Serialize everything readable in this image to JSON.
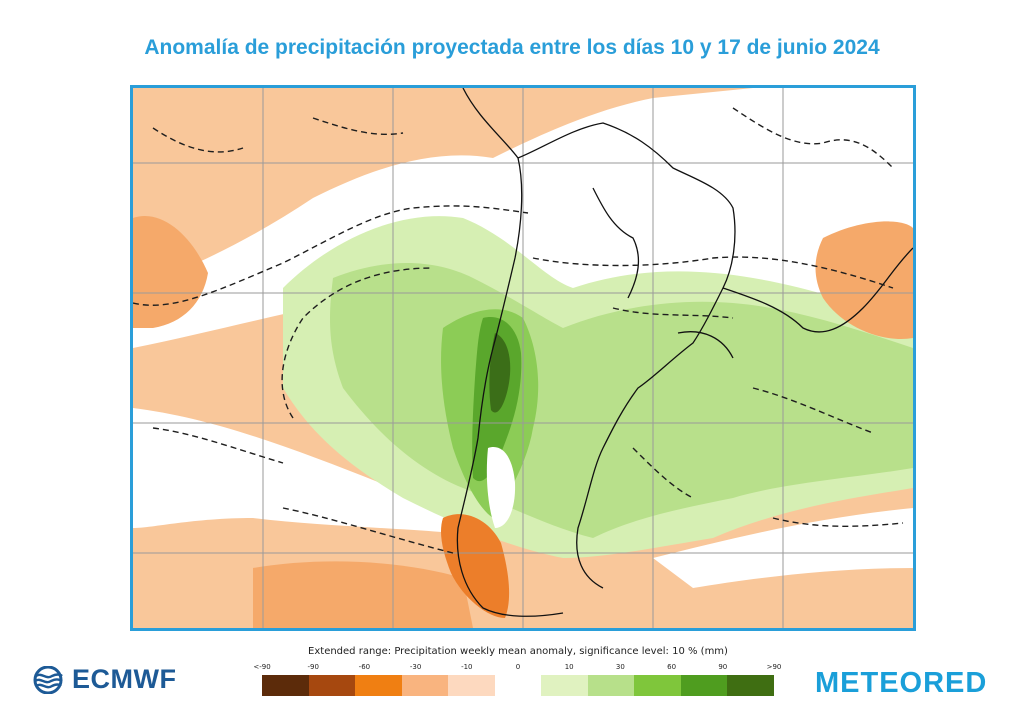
{
  "title": "Anomalía de precipitación proyectada entre los días 10 y 17 de junio 2024",
  "legend": {
    "caption": "Extended range: Precipitation weekly mean anomaly, significance level: 10 % (mm)",
    "tick_labels": [
      "<-90",
      "-90",
      "-60",
      "-30",
      "-10",
      "0",
      "10",
      "30",
      "60",
      "90",
      ">90"
    ],
    "colors": [
      "#5c2b0a",
      "#a6480f",
      "#f07f12",
      "#f9b47f",
      "#fdd9bf",
      "#ffffff",
      "#e0f2c0",
      "#b7e08a",
      "#7fc63b",
      "#4f9d1f",
      "#3f6e12"
    ]
  },
  "map_colors": {
    "orange_light": "#f9c79a",
    "orange_mid": "#f5a96a",
    "orange_dark": "#ec7e2a",
    "green_pale": "#d6efb3",
    "green_light": "#b8e08b",
    "green_mid": "#8ccc56",
    "green_dark": "#5aa72c",
    "green_darkest": "#3b6e18",
    "grid": "#9a9a9a",
    "coast": "#111111"
  },
  "logos": {
    "ecmwf": "ECMWF",
    "meteored": "METEORED"
  }
}
